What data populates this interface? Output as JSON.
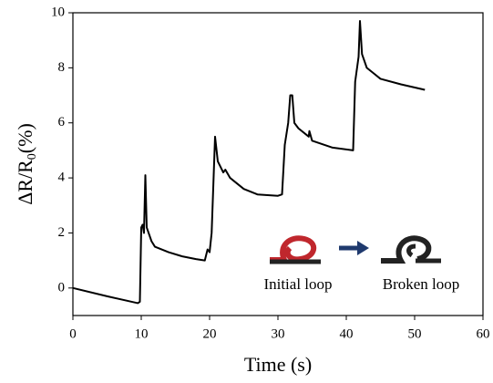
{
  "chart_data": {
    "type": "line",
    "x_label": "Time (s)",
    "y_label": [
      "ΔR/R",
      "0",
      "(%)"
    ],
    "annotations": [
      "Initial loop",
      "Broken loop"
    ],
    "xlim": [
      0,
      60
    ],
    "xticks": [
      0,
      10,
      20,
      30,
      40,
      50,
      60
    ],
    "ylim": [
      -1,
      10
    ],
    "yticks": [
      0,
      2,
      4,
      6,
      8,
      10
    ],
    "series": [
      {
        "color": "#000000",
        "x": [
          0,
          5,
          9.5,
          9.8,
          10,
          10.2,
          10.4,
          10.6,
          10.8,
          11.5,
          12,
          14,
          16,
          18,
          19.3,
          19.7,
          20,
          20.3,
          20.8,
          21.2,
          22,
          22.3,
          23,
          25,
          27,
          30,
          30.6,
          31,
          31.5,
          31.8,
          32.1,
          32.4,
          33,
          34.5,
          34.6,
          35,
          38,
          41,
          41.3,
          41.8,
          42,
          42.3,
          43,
          44,
          45,
          48,
          51.5
        ],
        "values": [
          0,
          -0.3,
          -0.55,
          -0.5,
          2.2,
          2.3,
          2.0,
          4.1,
          2.2,
          1.7,
          1.5,
          1.3,
          1.15,
          1.05,
          1.0,
          1.4,
          1.3,
          2.0,
          5.5,
          4.6,
          4.2,
          4.3,
          4.0,
          3.6,
          3.4,
          3.35,
          3.4,
          5.2,
          6.0,
          7.0,
          7.0,
          6.0,
          5.8,
          5.5,
          5.7,
          5.35,
          5.1,
          5.0,
          7.5,
          8.4,
          9.7,
          8.5,
          8.0,
          7.8,
          7.6,
          7.4,
          7.2
        ]
      }
    ]
  }
}
